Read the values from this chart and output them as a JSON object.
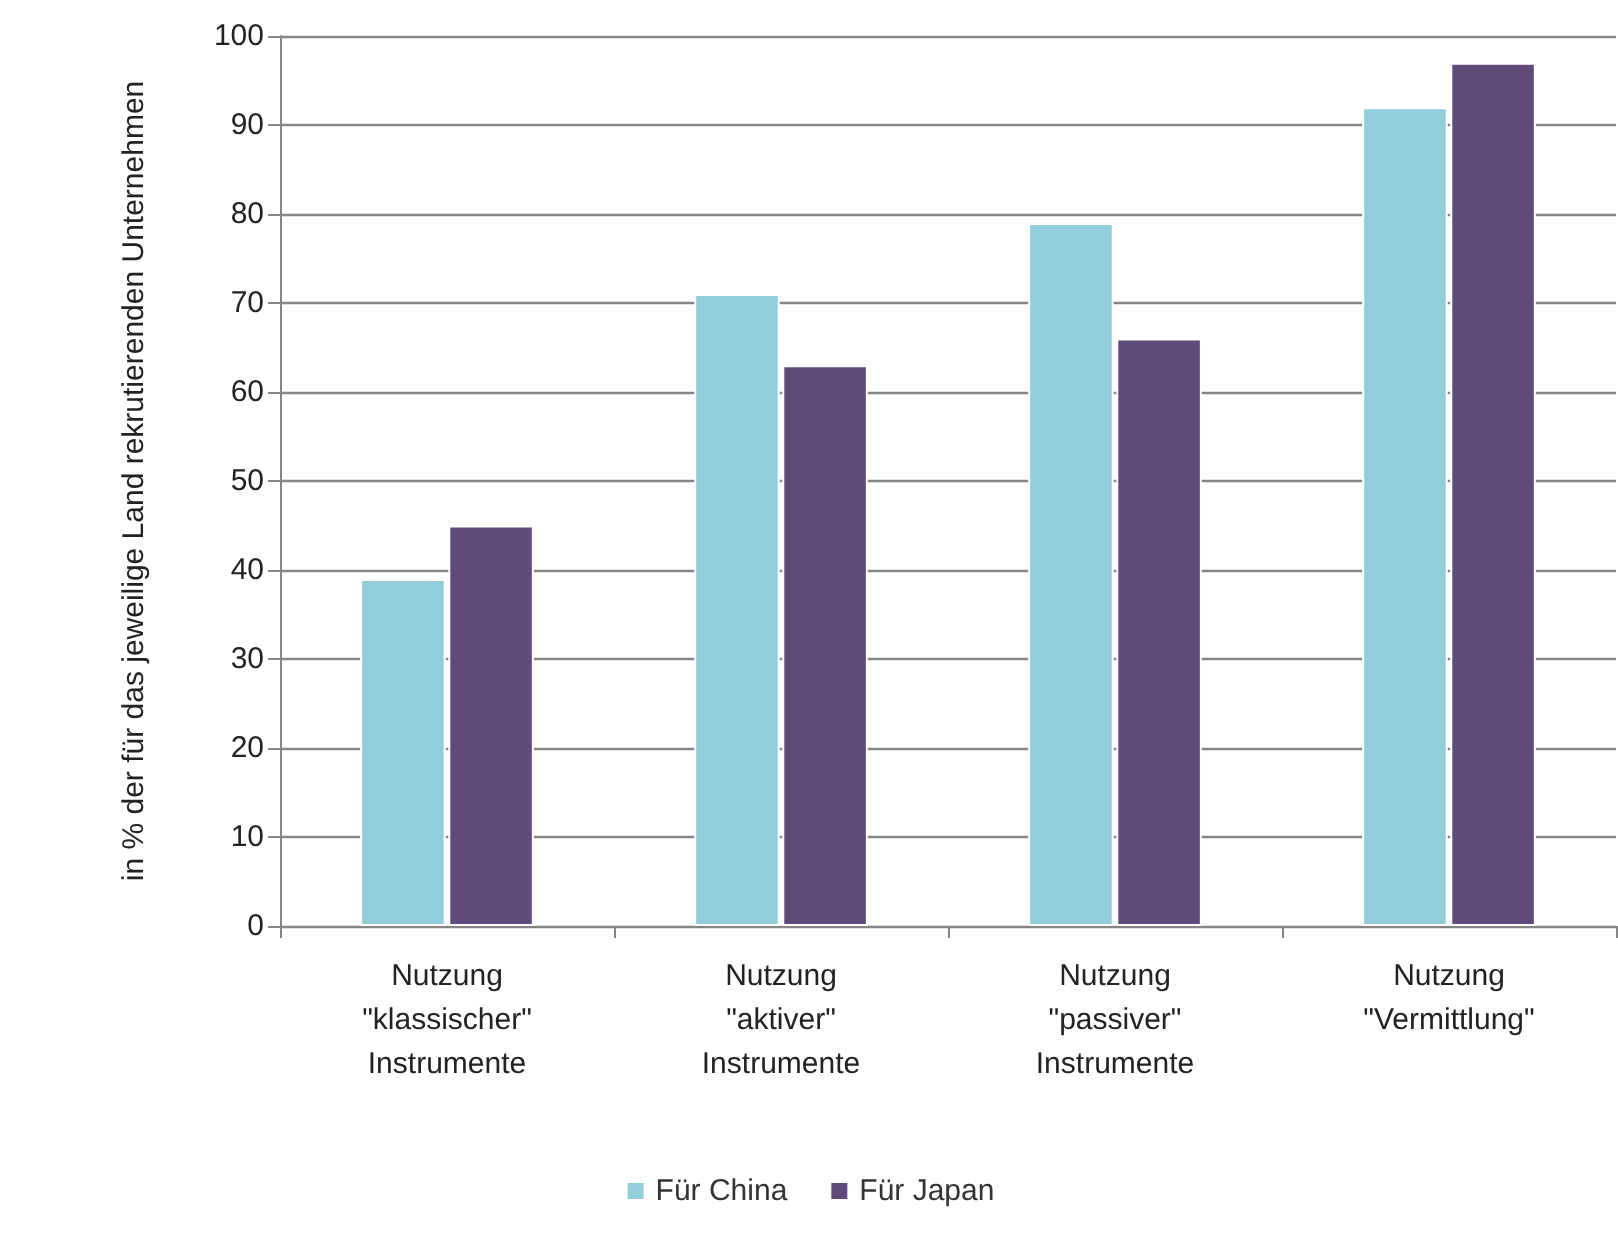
{
  "chart_data": {
    "type": "bar",
    "ylabel": "in % der für das jeweilige Land rekrutierenden Unternehmen",
    "categories": [
      "Nutzung \"klassischer\" Instrumente",
      "Nutzung \"aktiver\" Instrumente",
      "Nutzung \"passiver\" Instrumente",
      "Nutzung \"Vermittlung\""
    ],
    "series": [
      {
        "name": "Für China",
        "color": "#92cddc",
        "values": [
          39,
          71,
          79,
          92
        ]
      },
      {
        "name": "Für Japan",
        "color": "#604a7b",
        "values": [
          45,
          63,
          66,
          97
        ]
      }
    ],
    "ylim": [
      0,
      100
    ],
    "yticks": [
      0,
      10,
      20,
      30,
      40,
      50,
      60,
      70,
      80,
      90,
      100
    ],
    "grid": "y",
    "legend": "bottom"
  }
}
